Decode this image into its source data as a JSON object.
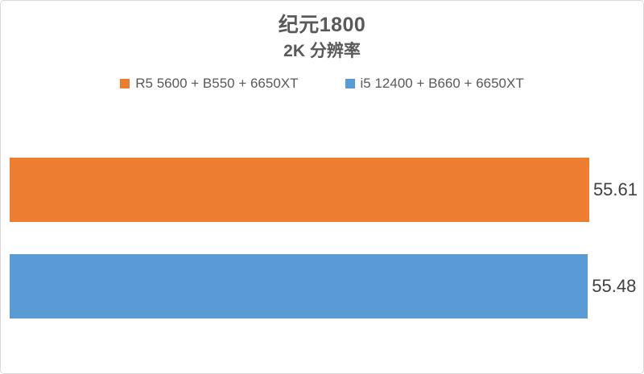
{
  "chart_data": {
    "type": "bar",
    "orientation": "horizontal",
    "title": "纪元1800",
    "subtitle": "2K 分辨率",
    "categories": [
      "R5 5600 + B550 + 6650XT",
      "i5 12400 + B660 + 6650XT"
    ],
    "series": [
      {
        "name": "R5 5600 + B550 + 6650XT",
        "value": 55.61,
        "label": "55.61",
        "color": "#ED7D31"
      },
      {
        "name": "i5 12400 + B660 + 6650XT",
        "value": 55.48,
        "label": "55.48",
        "color": "#5B9BD5"
      }
    ],
    "xlim": [
      0,
      56
    ],
    "legend_position": "top",
    "legend": [
      "R5 5600 + B550 + 6650XT",
      "i5 12400 + B660 + 6650XT"
    ],
    "grid": false,
    "value_labels": "outside-end",
    "xlabel": "",
    "ylabel": ""
  },
  "colors": {
    "background": "#FFFFFF",
    "frame_border": "#D9D9D9",
    "title_text": "#595959",
    "legend_text": "#595959",
    "value_label_text": "#404040",
    "series_orange": "#ED7D31",
    "series_blue": "#5B9BD5"
  }
}
